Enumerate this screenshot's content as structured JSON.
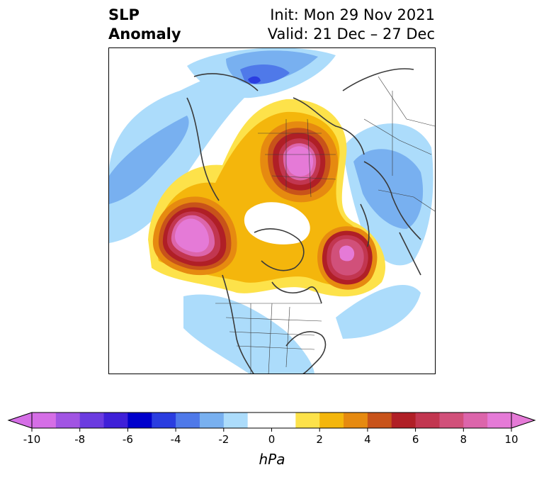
{
  "title": {
    "left_line1": "SLP",
    "left_line2": "Anomaly",
    "right_line1": "Init: Mon 29 Nov 2021",
    "right_line2": "Valid: 21 Dec – 27 Dec"
  },
  "colorbar": {
    "unit": "hPa",
    "ticks": [
      "-10",
      "-8",
      "-6",
      "-4",
      "-2",
      "0",
      "2",
      "4",
      "6",
      "8",
      "10"
    ],
    "bins": [
      {
        "from": -10,
        "to": -9,
        "color": "#d56ee6"
      },
      {
        "from": -9,
        "to": -8,
        "color": "#a154e3"
      },
      {
        "from": -8,
        "to": -7,
        "color": "#6b3be0"
      },
      {
        "from": -7,
        "to": -6,
        "color": "#3f20d8"
      },
      {
        "from": -6,
        "to": -5,
        "color": "#0000cc"
      },
      {
        "from": -5,
        "to": -4,
        "color": "#2a3de0"
      },
      {
        "from": -4,
        "to": -3,
        "color": "#4f79e9"
      },
      {
        "from": -3,
        "to": -2,
        "color": "#78b0f0"
      },
      {
        "from": -2,
        "to": -1,
        "color": "#acdcfb"
      },
      {
        "from": -1,
        "to": 0,
        "color": "#ffffff"
      },
      {
        "from": 0,
        "to": 1,
        "color": "#ffffff"
      },
      {
        "from": 1,
        "to": 2,
        "color": "#fde24a"
      },
      {
        "from": 2,
        "to": 3,
        "color": "#f4b60c"
      },
      {
        "from": 3,
        "to": 4,
        "color": "#e68a10"
      },
      {
        "from": 4,
        "to": 5,
        "color": "#c8531a"
      },
      {
        "from": 5,
        "to": 6,
        "color": "#b01f26"
      },
      {
        "from": 6,
        "to": 7,
        "color": "#c23650"
      },
      {
        "from": 7,
        "to": 8,
        "color": "#d1507a"
      },
      {
        "from": 8,
        "to": 9,
        "color": "#dc65ab"
      },
      {
        "from": 9,
        "to": 10,
        "color": "#e57ad7"
      }
    ],
    "under_color": "#d56ee6",
    "over_color": "#e57ad7"
  }
}
